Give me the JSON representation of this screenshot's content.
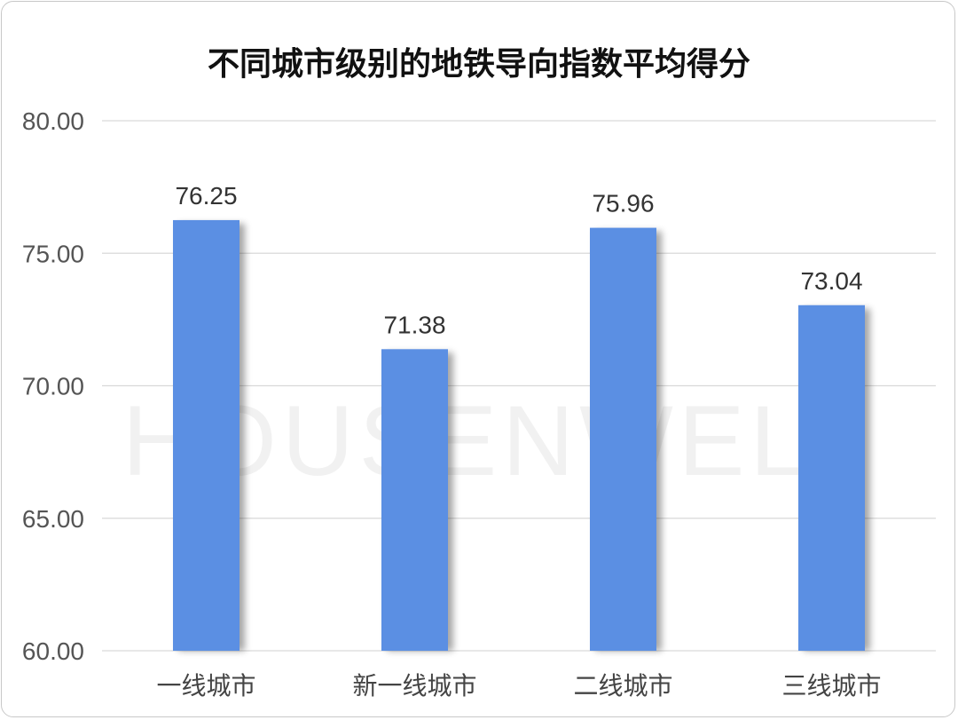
{
  "chart_data": {
    "type": "bar",
    "title": "不同城市级别的地铁导向指数平均得分",
    "categories": [
      "一线城市",
      "新一线城市",
      "二线城市",
      "三线城市"
    ],
    "values": [
      76.25,
      71.38,
      75.96,
      73.04
    ],
    "value_labels": [
      "76.25",
      "71.38",
      "75.96",
      "73.04"
    ],
    "ylim": [
      60,
      80
    ],
    "yticks": [
      60,
      65,
      70,
      75,
      80
    ],
    "ytick_labels": [
      "60.00",
      "65.00",
      "70.00",
      "75.00",
      "80.00"
    ],
    "grid": true,
    "legend": "none",
    "bar_color": "#5b8fe3",
    "watermark": "HOUSENWELL"
  }
}
